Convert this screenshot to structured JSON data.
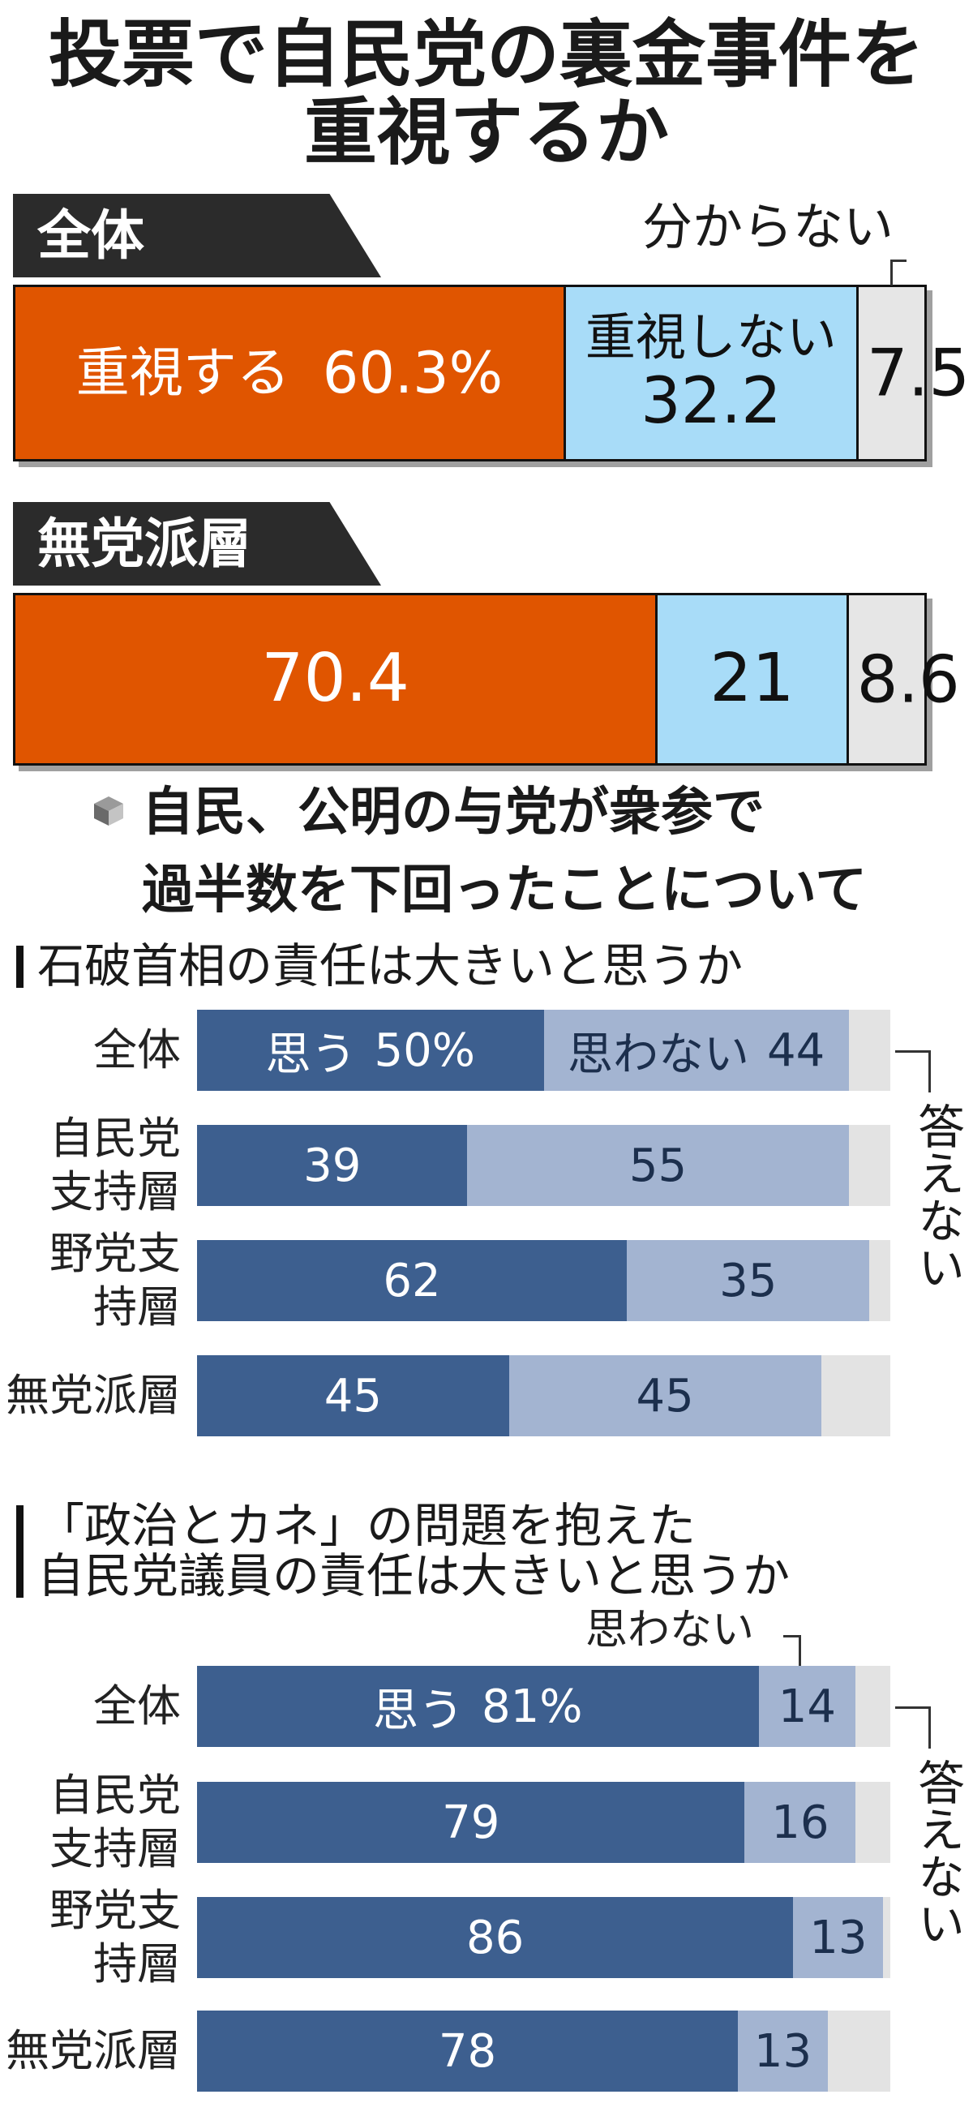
{
  "section_heading": [
    "自民、公明の与党が衆参で",
    "過半数を下回ったことについて"
  ],
  "chart_data": [
    {
      "type": "bar",
      "orientation": "horizontal",
      "stacked": true,
      "title": [
        "投票で自民党の裏金事件を",
        "重視するか"
      ],
      "categories": [
        "全体",
        "無党派層"
      ],
      "series": [
        {
          "name": "重視する",
          "color": "#e05500",
          "values": [
            60.3,
            70.4
          ],
          "value_labels": [
            "60.3%",
            "70.4"
          ]
        },
        {
          "name": "重視しない",
          "color": "#a8dcf8",
          "values": [
            32.2,
            21
          ]
        },
        {
          "name": "分からない",
          "color": "#e6e6e6",
          "values": [
            7.5,
            8.6
          ]
        }
      ]
    },
    {
      "type": "bar",
      "orientation": "horizontal",
      "stacked": true,
      "title": [
        "石破首相の責任は大きいと思うか"
      ],
      "categories": [
        "全体",
        "自民党支持層",
        "野党支持層",
        "無党派層"
      ],
      "series": [
        {
          "name": "思う",
          "color": "#3d5f8f",
          "values": [
            50,
            39,
            62,
            45
          ],
          "value_labels": [
            "50%",
            "39",
            "62",
            "45"
          ]
        },
        {
          "name": "思わない",
          "color": "#a3b4d1",
          "values": [
            44,
            55,
            35,
            45
          ]
        },
        {
          "name": "答えない",
          "color": "#e3e3e3",
          "values": [
            6,
            6,
            3,
            10
          ]
        }
      ]
    },
    {
      "type": "bar",
      "orientation": "horizontal",
      "stacked": true,
      "title": [
        "「政治とカネ」の問題を抱えた",
        "自民党議員の責任は大きいと思うか"
      ],
      "categories": [
        "全体",
        "自民党支持層",
        "野党支持層",
        "無党派層"
      ],
      "series": [
        {
          "name": "思う",
          "color": "#3d5f8f",
          "values": [
            81,
            79,
            86,
            78
          ],
          "value_labels": [
            "81%",
            "79",
            "86",
            "78"
          ]
        },
        {
          "name": "思わない",
          "color": "#a3b4d1",
          "values": [
            14,
            16,
            13,
            13
          ]
        },
        {
          "name": "答えない",
          "color": "#e3e3e3",
          "values": [
            5,
            5,
            1,
            9
          ]
        }
      ]
    }
  ]
}
